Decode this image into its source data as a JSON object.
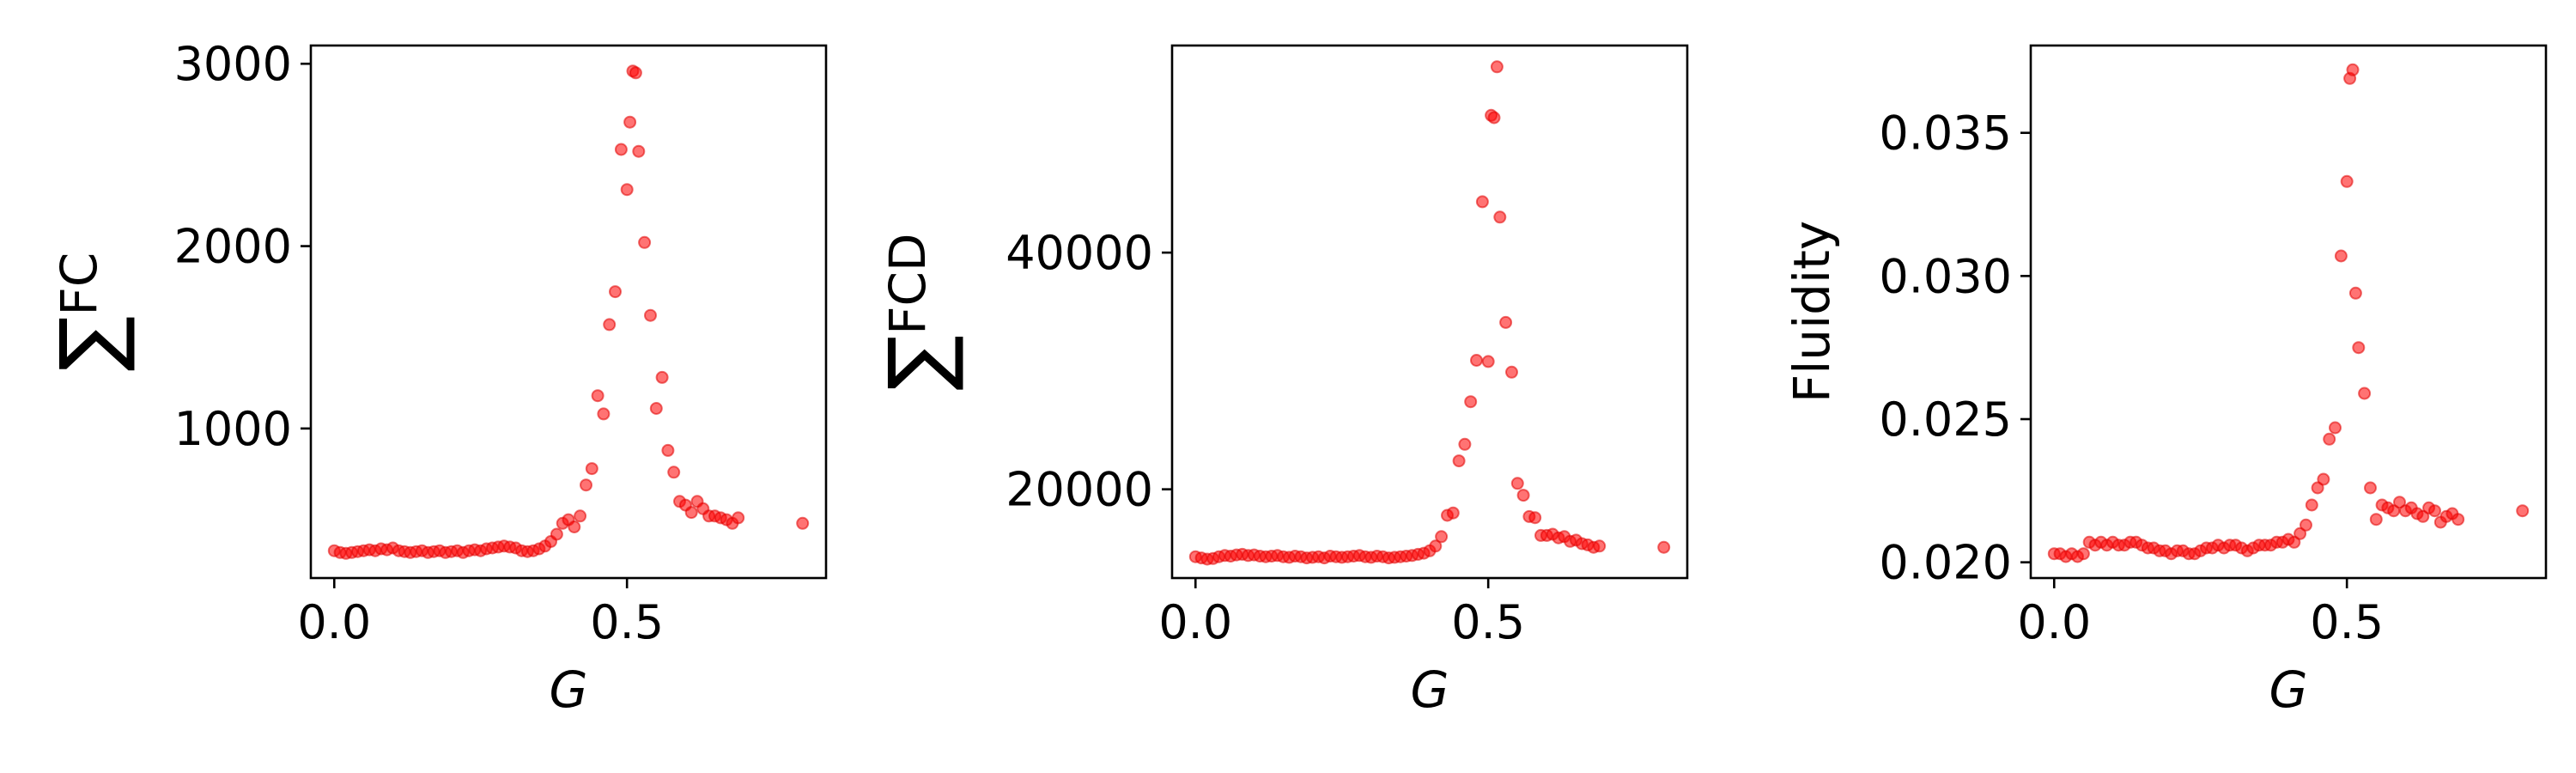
{
  "chart_data": [
    {
      "type": "scatter",
      "xlabel": "G",
      "ylabel": {
        "symbol": "∑",
        "text": "FC"
      },
      "xlim": [
        -0.04,
        0.84
      ],
      "ylim": [
        180,
        3100
      ],
      "xticks": [
        0.0,
        0.5
      ],
      "xtick_labels": [
        "0.0",
        "0.5"
      ],
      "yticks": [
        1000,
        2000,
        3000
      ],
      "ytick_labels": [
        "1000",
        "2000",
        "3000"
      ],
      "marker_color": "#ff0000",
      "marker_alpha": 0.55,
      "x": [
        0.0,
        0.01,
        0.02,
        0.03,
        0.04,
        0.05,
        0.06,
        0.07,
        0.08,
        0.09,
        0.1,
        0.11,
        0.12,
        0.13,
        0.14,
        0.15,
        0.16,
        0.17,
        0.18,
        0.19,
        0.2,
        0.21,
        0.22,
        0.23,
        0.24,
        0.25,
        0.26,
        0.27,
        0.28,
        0.29,
        0.3,
        0.31,
        0.32,
        0.33,
        0.34,
        0.35,
        0.36,
        0.37,
        0.38,
        0.39,
        0.4,
        0.41,
        0.42,
        0.43,
        0.44,
        0.45,
        0.46,
        0.47,
        0.48,
        0.49,
        0.5,
        0.505,
        0.51,
        0.515,
        0.52,
        0.53,
        0.54,
        0.55,
        0.56,
        0.57,
        0.58,
        0.59,
        0.6,
        0.61,
        0.62,
        0.63,
        0.64,
        0.65,
        0.66,
        0.67,
        0.68,
        0.69,
        0.8
      ],
      "y": [
        330,
        320,
        315,
        320,
        325,
        330,
        335,
        330,
        340,
        335,
        345,
        330,
        325,
        320,
        325,
        330,
        320,
        325,
        330,
        320,
        325,
        330,
        320,
        330,
        335,
        330,
        340,
        345,
        350,
        355,
        350,
        345,
        330,
        325,
        330,
        340,
        355,
        380,
        420,
        480,
        500,
        460,
        520,
        690,
        780,
        1180,
        1080,
        1570,
        1750,
        2530,
        2310,
        2680,
        2960,
        2950,
        2520,
        2020,
        1620,
        1110,
        1280,
        880,
        760,
        600,
        580,
        540,
        600,
        560,
        520,
        520,
        510,
        500,
        480,
        510,
        480
      ]
    },
    {
      "type": "scatter",
      "xlabel": "G",
      "ylabel": {
        "symbol": "∑",
        "text": "FCD"
      },
      "xlim": [
        -0.04,
        0.84
      ],
      "ylim": [
        12500,
        57500
      ],
      "xticks": [
        0.0,
        0.5
      ],
      "xtick_labels": [
        "0.0",
        "0.5"
      ],
      "yticks": [
        20000,
        40000
      ],
      "ytick_labels": [
        "20000",
        "40000"
      ],
      "marker_color": "#ff0000",
      "marker_alpha": 0.55,
      "x": [
        0.0,
        0.01,
        0.02,
        0.03,
        0.04,
        0.05,
        0.06,
        0.07,
        0.08,
        0.09,
        0.1,
        0.11,
        0.12,
        0.13,
        0.14,
        0.15,
        0.16,
        0.17,
        0.18,
        0.19,
        0.2,
        0.21,
        0.22,
        0.23,
        0.24,
        0.25,
        0.26,
        0.27,
        0.28,
        0.29,
        0.3,
        0.31,
        0.32,
        0.33,
        0.34,
        0.35,
        0.36,
        0.37,
        0.38,
        0.39,
        0.4,
        0.41,
        0.42,
        0.43,
        0.44,
        0.45,
        0.46,
        0.47,
        0.48,
        0.49,
        0.5,
        0.505,
        0.51,
        0.515,
        0.52,
        0.53,
        0.54,
        0.55,
        0.56,
        0.57,
        0.58,
        0.59,
        0.6,
        0.61,
        0.62,
        0.63,
        0.64,
        0.65,
        0.66,
        0.67,
        0.68,
        0.69,
        0.8
      ],
      "y": [
        14300,
        14200,
        14100,
        14150,
        14300,
        14400,
        14350,
        14450,
        14500,
        14400,
        14450,
        14350,
        14300,
        14350,
        14400,
        14300,
        14250,
        14350,
        14300,
        14200,
        14250,
        14300,
        14200,
        14350,
        14300,
        14250,
        14300,
        14350,
        14400,
        14300,
        14250,
        14350,
        14300,
        14200,
        14250,
        14300,
        14350,
        14400,
        14500,
        14600,
        14800,
        15200,
        16000,
        17800,
        18000,
        22400,
        23800,
        27400,
        30900,
        44300,
        30800,
        51600,
        51400,
        55700,
        43000,
        34100,
        29900,
        20500,
        19500,
        17700,
        17600,
        16100,
        16100,
        16200,
        15900,
        16000,
        15600,
        15700,
        15400,
        15300,
        15100,
        15200,
        15100
      ]
    },
    {
      "type": "scatter",
      "xlabel": "G",
      "ylabel": {
        "symbol": "",
        "text": "Fluidity"
      },
      "xlim": [
        -0.04,
        0.84
      ],
      "ylim": [
        0.01945,
        0.03805
      ],
      "xticks": [
        0.0,
        0.5
      ],
      "xtick_labels": [
        "0.0",
        "0.5"
      ],
      "yticks": [
        0.02,
        0.025,
        0.03,
        0.035
      ],
      "ytick_labels": [
        "0.020",
        "0.025",
        "0.030",
        "0.035"
      ],
      "marker_color": "#ff0000",
      "marker_alpha": 0.55,
      "x": [
        0.0,
        0.01,
        0.02,
        0.03,
        0.04,
        0.05,
        0.06,
        0.07,
        0.08,
        0.09,
        0.1,
        0.11,
        0.12,
        0.13,
        0.14,
        0.15,
        0.16,
        0.17,
        0.18,
        0.19,
        0.2,
        0.21,
        0.22,
        0.23,
        0.24,
        0.25,
        0.26,
        0.27,
        0.28,
        0.29,
        0.3,
        0.31,
        0.32,
        0.33,
        0.34,
        0.35,
        0.36,
        0.37,
        0.38,
        0.39,
        0.4,
        0.41,
        0.42,
        0.43,
        0.44,
        0.45,
        0.46,
        0.47,
        0.48,
        0.49,
        0.5,
        0.505,
        0.51,
        0.515,
        0.52,
        0.53,
        0.54,
        0.55,
        0.56,
        0.57,
        0.58,
        0.59,
        0.6,
        0.61,
        0.62,
        0.63,
        0.64,
        0.65,
        0.66,
        0.67,
        0.68,
        0.69,
        0.8
      ],
      "y": [
        0.0203,
        0.0203,
        0.0202,
        0.0203,
        0.0202,
        0.0203,
        0.0207,
        0.0206,
        0.0207,
        0.0206,
        0.0207,
        0.0206,
        0.0206,
        0.0207,
        0.0207,
        0.0206,
        0.0205,
        0.0205,
        0.0204,
        0.0204,
        0.0203,
        0.0204,
        0.0204,
        0.0203,
        0.0203,
        0.0204,
        0.0205,
        0.0205,
        0.0206,
        0.0205,
        0.0206,
        0.0206,
        0.0205,
        0.0204,
        0.0205,
        0.0206,
        0.0206,
        0.0206,
        0.0207,
        0.0207,
        0.0208,
        0.0207,
        0.021,
        0.0213,
        0.022,
        0.0226,
        0.0229,
        0.0243,
        0.0247,
        0.0307,
        0.0333,
        0.0369,
        0.0372,
        0.0294,
        0.0275,
        0.0259,
        0.0226,
        0.0215,
        0.022,
        0.0219,
        0.0218,
        0.0221,
        0.0218,
        0.0219,
        0.0217,
        0.0216,
        0.0219,
        0.0218,
        0.0214,
        0.0216,
        0.0217,
        0.0215,
        0.0218
      ]
    }
  ]
}
